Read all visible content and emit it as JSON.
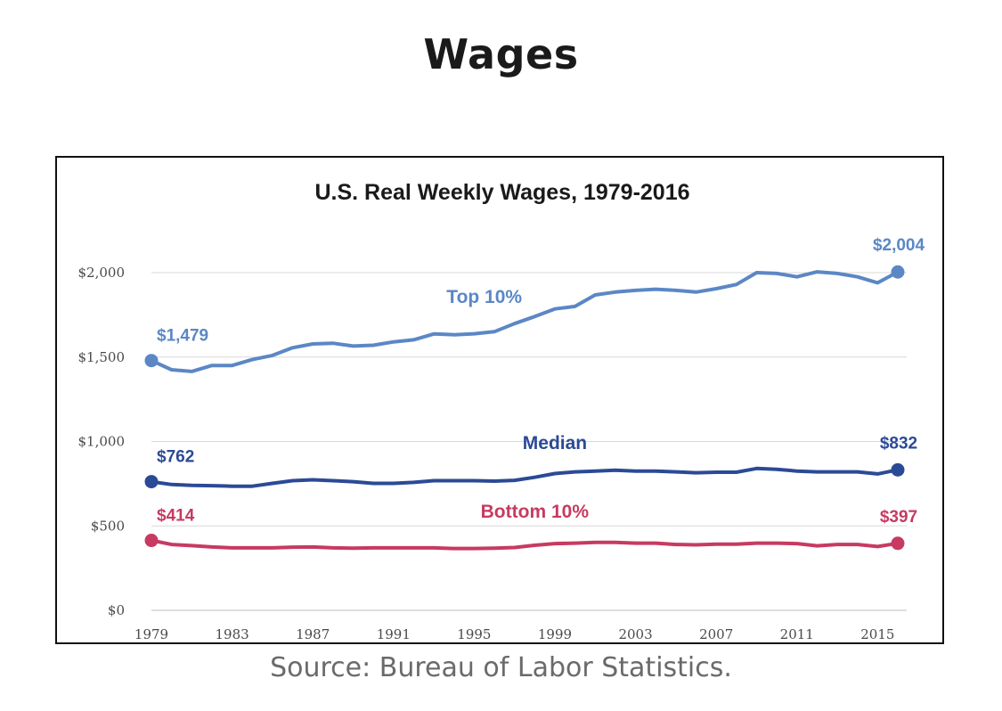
{
  "page": {
    "title": "Wages",
    "source": "Source: Bureau of Labor Statistics."
  },
  "chart_data": {
    "type": "line",
    "title": "U.S. Real Weekly Wages, 1979-2016",
    "xlabel": "",
    "ylabel": "",
    "xlim": [
      1979,
      2016
    ],
    "ylim": [
      0,
      2000
    ],
    "grid": true,
    "x_ticks": [
      1979,
      1983,
      1987,
      1991,
      1995,
      1999,
      2003,
      2007,
      2011,
      2015
    ],
    "x_tick_labels": [
      "1979",
      "1983",
      "1987",
      "1991",
      "1995",
      "1999",
      "2003",
      "2007",
      "2011",
      "2015"
    ],
    "y_ticks": [
      0,
      500,
      1000,
      1500,
      2000
    ],
    "y_tick_labels": [
      "$0",
      "$500",
      "$1,000",
      "$1,500",
      "$2,000"
    ],
    "x": [
      1979,
      1980,
      1981,
      1982,
      1983,
      1984,
      1985,
      1986,
      1987,
      1988,
      1989,
      1990,
      1991,
      1992,
      1993,
      1994,
      1995,
      1996,
      1997,
      1998,
      1999,
      2000,
      2001,
      2002,
      2003,
      2004,
      2005,
      2006,
      2007,
      2008,
      2009,
      2010,
      2011,
      2012,
      2013,
      2014,
      2015,
      2016
    ],
    "series": [
      {
        "name": "Top 10%",
        "color": "#5b87c5",
        "values": [
          1479,
          1425,
          1415,
          1450,
          1450,
          1485,
          1510,
          1555,
          1578,
          1582,
          1565,
          1570,
          1590,
          1602,
          1637,
          1632,
          1638,
          1650,
          1698,
          1740,
          1785,
          1800,
          1868,
          1885,
          1895,
          1902,
          1895,
          1885,
          1905,
          1930,
          2000,
          1995,
          1975,
          2005,
          1995,
          1975,
          1940,
          2004
        ],
        "label_position": {
          "year": 1995.5,
          "value": 1820
        },
        "start_label": "$1,479",
        "end_label": "$2,004"
      },
      {
        "name": "Median",
        "color": "#2b4a96",
        "values": [
          762,
          745,
          740,
          738,
          735,
          735,
          752,
          768,
          773,
          768,
          762,
          752,
          752,
          758,
          768,
          768,
          768,
          765,
          770,
          788,
          810,
          820,
          825,
          830,
          825,
          825,
          820,
          815,
          818,
          818,
          840,
          835,
          825,
          820,
          820,
          820,
          808,
          832
        ],
        "label_position": {
          "year": 1999,
          "value": 955
        },
        "start_label": "$762",
        "end_label": "$832"
      },
      {
        "name": "Bottom 10%",
        "color": "#c73a62",
        "values": [
          414,
          390,
          383,
          375,
          370,
          370,
          370,
          374,
          375,
          370,
          368,
          370,
          370,
          370,
          370,
          366,
          366,
          368,
          372,
          385,
          395,
          398,
          402,
          402,
          398,
          398,
          390,
          388,
          392,
          392,
          398,
          398,
          395,
          382,
          390,
          390,
          378,
          397
        ],
        "label_position": {
          "year": 1998,
          "value": 550
        },
        "start_label": "$414",
        "end_label": "$397"
      }
    ]
  }
}
